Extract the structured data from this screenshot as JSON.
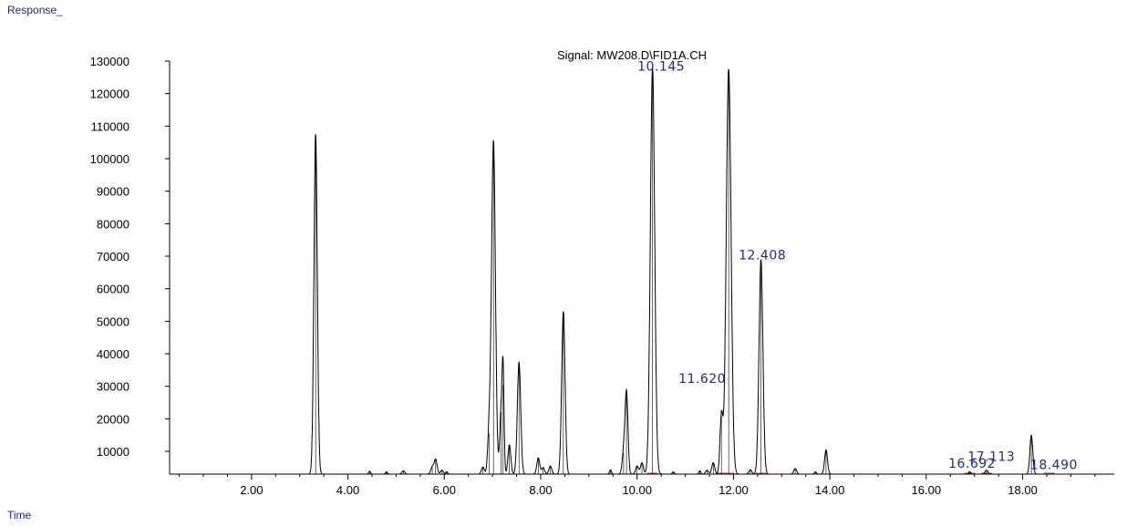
{
  "chart_data": {
    "type": "line",
    "ylabel": "Response_",
    "xlabel": "Time",
    "signal_label": "Signal: MW208.D\\FID1A.CH",
    "xlim": [
      0.3,
      19.9
    ],
    "ylim": [
      3000,
      130000
    ],
    "x_ticks": [
      {
        "v": 2,
        "label": "2.00"
      },
      {
        "v": 4,
        "label": "4.00"
      },
      {
        "v": 6,
        "label": "6.00"
      },
      {
        "v": 8,
        "label": "8.00"
      },
      {
        "v": 10,
        "label": "10.00"
      },
      {
        "v": 12,
        "label": "12.00"
      },
      {
        "v": 14,
        "label": "14.00"
      },
      {
        "v": 16,
        "label": "16.00"
      },
      {
        "v": 18,
        "label": "18.00"
      }
    ],
    "y_ticks": [
      {
        "v": 10000,
        "label": "10000"
      },
      {
        "v": 20000,
        "label": "20000"
      },
      {
        "v": 30000,
        "label": "30000"
      },
      {
        "v": 40000,
        "label": "40000"
      },
      {
        "v": 50000,
        "label": "50000"
      },
      {
        "v": 60000,
        "label": "60000"
      },
      {
        "v": 70000,
        "label": "70000"
      },
      {
        "v": 80000,
        "label": "80000"
      },
      {
        "v": 90000,
        "label": "90000"
      },
      {
        "v": 100000,
        "label": "100000"
      },
      {
        "v": 110000,
        "label": "110000"
      },
      {
        "v": 120000,
        "label": "120000"
      },
      {
        "v": 130000,
        "label": "130000"
      }
    ],
    "peaks": [
      {
        "rt": 3.33,
        "height": 107500,
        "w": 0.035
      },
      {
        "rt": 4.45,
        "height": 3900,
        "w": 0.02
      },
      {
        "rt": 4.8,
        "height": 3700,
        "w": 0.02
      },
      {
        "rt": 5.15,
        "height": 4000,
        "w": 0.03
      },
      {
        "rt": 5.75,
        "height": 5200,
        "w": 0.03
      },
      {
        "rt": 5.82,
        "height": 7500,
        "w": 0.03
      },
      {
        "rt": 5.95,
        "height": 4200,
        "w": 0.03
      },
      {
        "rt": 6.05,
        "height": 3700,
        "w": 0.02
      },
      {
        "rt": 6.8,
        "height": 5200,
        "w": 0.03
      },
      {
        "rt": 6.93,
        "height": 15500,
        "w": 0.03
      },
      {
        "rt": 7.02,
        "height": 105500,
        "w": 0.04
      },
      {
        "rt": 7.18,
        "height": 22000,
        "w": 0.03
      },
      {
        "rt": 7.22,
        "height": 30500,
        "w": 0.02
      },
      {
        "rt": 7.35,
        "height": 12000,
        "w": 0.03
      },
      {
        "rt": 7.55,
        "height": 37500,
        "w": 0.035
      },
      {
        "rt": 7.95,
        "height": 8000,
        "w": 0.03
      },
      {
        "rt": 8.05,
        "height": 5000,
        "w": 0.03
      },
      {
        "rt": 8.2,
        "height": 5500,
        "w": 0.03
      },
      {
        "rt": 8.47,
        "height": 53000,
        "w": 0.035
      },
      {
        "rt": 9.45,
        "height": 4300,
        "w": 0.02
      },
      {
        "rt": 9.72,
        "height": 9500,
        "w": 0.03
      },
      {
        "rt": 9.78,
        "height": 28000,
        "w": 0.03
      },
      {
        "rt": 10.0,
        "height": 5500,
        "w": 0.03
      },
      {
        "rt": 10.1,
        "height": 6500,
        "w": 0.03
      },
      {
        "rt": 10.32,
        "height": 128000,
        "w": 0.045
      },
      {
        "rt": 10.75,
        "height": 3700,
        "w": 0.02
      },
      {
        "rt": 11.3,
        "height": 4000,
        "w": 0.02
      },
      {
        "rt": 11.45,
        "height": 4200,
        "w": 0.03
      },
      {
        "rt": 11.58,
        "height": 6500,
        "w": 0.03
      },
      {
        "rt": 11.75,
        "height": 21000,
        "w": 0.03
      },
      {
        "rt": 11.9,
        "height": 127500,
        "w": 0.05
      },
      {
        "rt": 12.35,
        "height": 4300,
        "w": 0.03
      },
      {
        "rt": 12.57,
        "height": 69000,
        "w": 0.04
      },
      {
        "rt": 13.28,
        "height": 4700,
        "w": 0.03
      },
      {
        "rt": 13.7,
        "height": 3700,
        "w": 0.02
      },
      {
        "rt": 13.92,
        "height": 10500,
        "w": 0.03
      },
      {
        "rt": 16.9,
        "height": 3800,
        "w": 0.02
      },
      {
        "rt": 17.25,
        "height": 4200,
        "w": 0.03
      },
      {
        "rt": 18.18,
        "height": 15000,
        "w": 0.03
      }
    ],
    "peak_labels": [
      {
        "text": "10.145",
        "x": 10.5,
        "y": 127000
      },
      {
        "text": "12.408",
        "x": 12.6,
        "y": 69000
      },
      {
        "text": "11.620",
        "x": 11.35,
        "y": 31000
      },
      {
        "text": "16.692",
        "x": 16.95,
        "y": 5000
      },
      {
        "text": "17.113",
        "x": 17.35,
        "y": 7000
      },
      {
        "text": "18.490",
        "x": 18.65,
        "y": 4500
      }
    ],
    "baseline_markers": [
      10.32,
      11.75,
      11.9,
      12.57,
      16.9,
      17.25,
      18.55
    ]
  }
}
